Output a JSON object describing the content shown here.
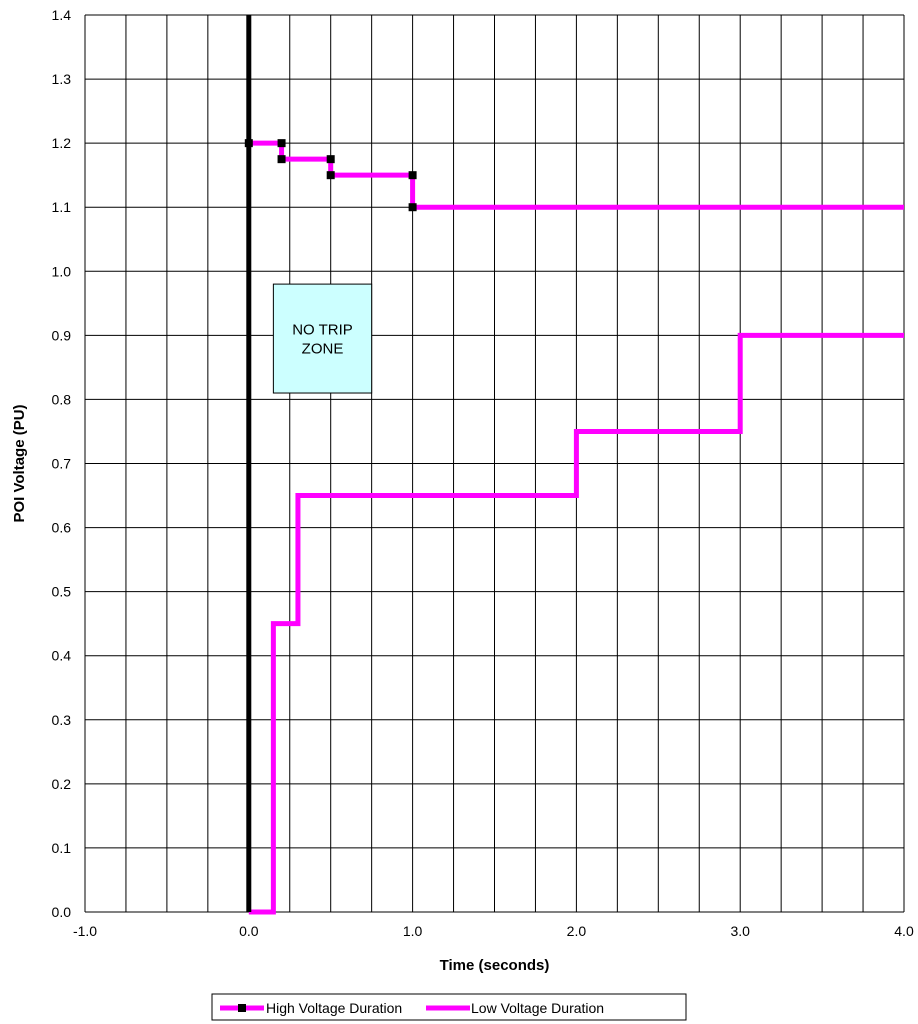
{
  "chart_data": {
    "type": "line",
    "xlabel": "Time (seconds)",
    "ylabel": "POI Voltage (PU)",
    "xlim": [
      -1.0,
      4.0
    ],
    "ylim": [
      0.0,
      1.4
    ],
    "grid": true,
    "x_minor_step": 0.25,
    "y_step": 0.1,
    "x_ticks": [
      -1.0,
      0.0,
      1.0,
      2.0,
      3.0,
      4.0
    ],
    "x_tick_labels": [
      "-1.0",
      "0.0",
      "1.0",
      "2.0",
      "3.0",
      "4.0"
    ],
    "y_ticks": [
      0.0,
      0.1,
      0.2,
      0.3,
      0.4,
      0.5,
      0.6,
      0.7,
      0.8,
      0.9,
      1.0,
      1.1,
      1.2,
      1.3,
      1.4
    ],
    "y_tick_labels": [
      "0.0",
      "0.1",
      "0.2",
      "0.3",
      "0.4",
      "0.5",
      "0.6",
      "0.7",
      "0.8",
      "0.9",
      "1.0",
      "1.1",
      "1.2",
      "1.3",
      "1.4"
    ],
    "legend_position": "bottom",
    "series": [
      {
        "name": "High Voltage Duration",
        "color": "#ff00ff",
        "marker": "square",
        "marker_color": "#000000",
        "x": [
          0.0,
          0.2,
          0.2,
          0.5,
          0.5,
          1.0,
          1.0,
          4.0
        ],
        "y": [
          1.2,
          1.2,
          1.175,
          1.175,
          1.15,
          1.15,
          1.1,
          1.1
        ],
        "markers_x": [
          0.0,
          0.2,
          0.2,
          0.5,
          0.5,
          1.0,
          1.0
        ],
        "markers_y": [
          1.2,
          1.2,
          1.175,
          1.175,
          1.15,
          1.15,
          1.1
        ]
      },
      {
        "name": "Low Voltage Duration",
        "color": "#ff00ff",
        "marker": "none",
        "x": [
          0.0,
          0.15,
          0.15,
          0.3,
          0.3,
          2.0,
          2.0,
          3.0,
          3.0,
          4.0
        ],
        "y": [
          0.0,
          0.0,
          0.45,
          0.45,
          0.65,
          0.65,
          0.75,
          0.75,
          0.9,
          0.9
        ]
      }
    ],
    "reference_line": {
      "x": 0.0,
      "color": "#000000"
    },
    "annotation": {
      "lines": [
        "NO TRIP",
        "ZONE"
      ],
      "x": [
        0.15,
        0.75
      ],
      "y": [
        0.81,
        0.98
      ],
      "fill": "#ccffff"
    }
  }
}
